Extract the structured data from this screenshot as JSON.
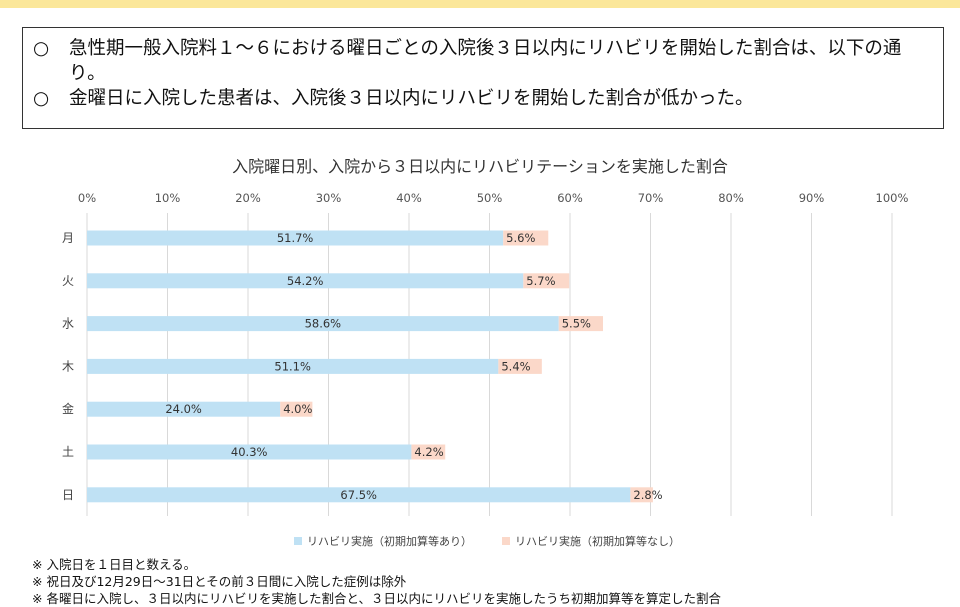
{
  "summary": {
    "bullets": [
      {
        "mark": "○",
        "text": "急性期一般入院料１～６における曜日ごとの入院後３日以内にリハビリを開始した割合は、以下の通り。"
      },
      {
        "mark": "○",
        "text": "金曜日に入院した患者は、入院後３日以内にリハビリを開始した割合が低かった。"
      }
    ]
  },
  "notes": [
    "※ 入院日を１日目と数える。",
    "※ 祝日及び12月29日～31日とその前３日間に入院した症例は除外",
    "※ 各曜日に入院し、３日以内にリハビリを実施した割合と、３日以内にリハビリを実施したうち初期加算等を算定した割合"
  ],
  "chart_data": {
    "type": "bar",
    "orientation": "horizontal",
    "stacked": true,
    "title": "入院曜日別、入院から３日以内にリハビリテーションを実施した割合",
    "categories": [
      "月",
      "火",
      "水",
      "木",
      "金",
      "土",
      "日"
    ],
    "series": [
      {
        "name": "リハビリ実施（初期加算等あり）",
        "color": "#bfe1f4",
        "values": [
          51.7,
          54.2,
          58.6,
          51.1,
          24.0,
          40.3,
          67.5
        ]
      },
      {
        "name": "リハビリ実施（初期加算等なし）",
        "color": "#fbd8c9",
        "values": [
          5.6,
          5.7,
          5.5,
          5.4,
          4.0,
          4.2,
          2.8
        ]
      }
    ],
    "xlim": [
      0,
      100
    ],
    "xticks": [
      "0%",
      "10%",
      "20%",
      "30%",
      "40%",
      "50%",
      "60%",
      "70%",
      "80%",
      "90%",
      "100%"
    ],
    "grid": true,
    "legend_position": "bottom"
  }
}
